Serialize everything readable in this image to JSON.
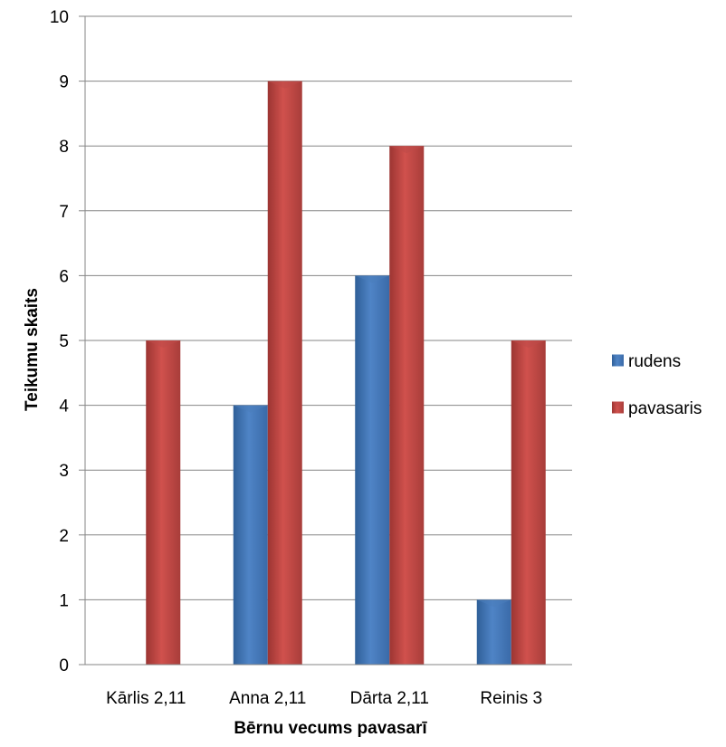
{
  "chart_data": {
    "type": "bar",
    "title": "",
    "xlabel": "Bērnu vecums pavasarī",
    "ylabel": "Teikumu skaits",
    "categories": [
      "Kārlis 2,11",
      "Anna 2,11",
      "Dārta 2,11",
      "Reinis 3"
    ],
    "series": [
      {
        "name": "rudens",
        "values": [
          0,
          4,
          6,
          1
        ],
        "color": "#4a7ebb"
      },
      {
        "name": "pavasaris",
        "values": [
          5,
          9,
          8,
          5
        ],
        "color": "#be4b48"
      }
    ],
    "ylim": [
      0,
      10
    ],
    "yticks": [
      0,
      1,
      2,
      3,
      4,
      5,
      6,
      7,
      8,
      9,
      10
    ],
    "grid": true,
    "legend_position": "right"
  }
}
